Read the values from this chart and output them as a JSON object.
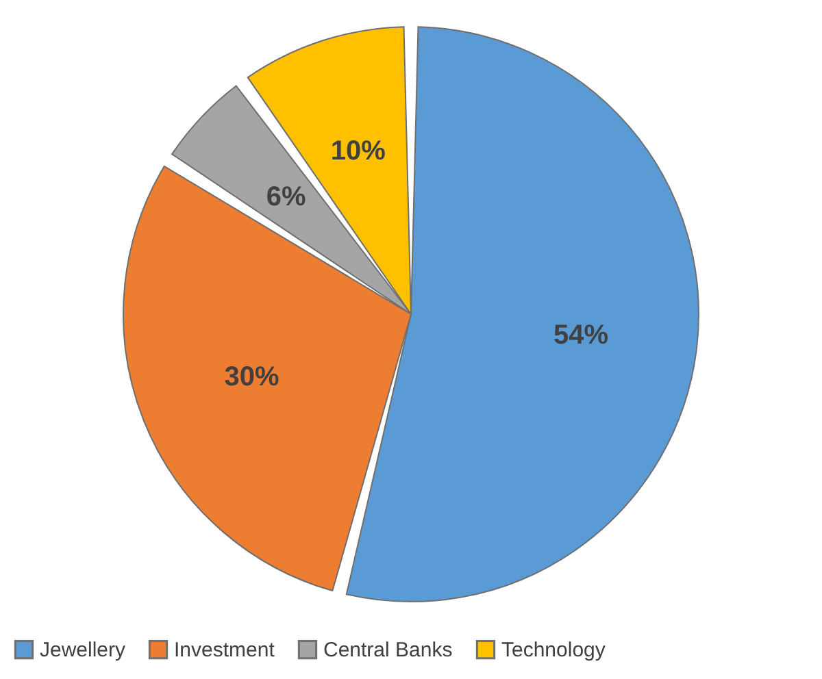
{
  "chart_data": {
    "type": "pie",
    "categories": [
      "Jewellery",
      "Investment",
      "Central Banks",
      "Technology"
    ],
    "values": [
      54,
      30,
      6,
      10
    ],
    "colors": [
      "#5b9bd5",
      "#ed7d31",
      "#a5a5a5",
      "#ffc000"
    ],
    "value_labels": [
      "54%",
      "30%",
      "6%",
      "10%"
    ],
    "legend": "bottom"
  }
}
